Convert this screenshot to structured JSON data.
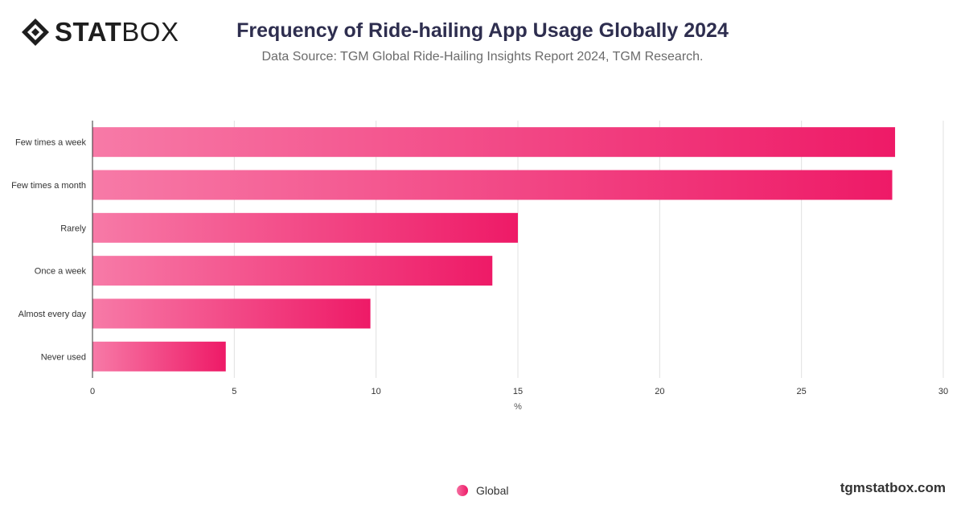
{
  "header": {
    "logo_text_bold": "STAT",
    "logo_text_light": "BOX",
    "title": "Frequency of Ride-hailing App Usage Globally 2024",
    "subtitle": "Data Source: TGM Global Ride-Hailing Insights Report 2024, TGM Research."
  },
  "chart_data": {
    "type": "bar",
    "orientation": "horizontal",
    "title": "Frequency of Ride-hailing App Usage Globally 2024",
    "subtitle": "Data Source: TGM Global Ride-Hailing Insights Report 2024, TGM Research.",
    "categories": [
      "Few times a week",
      "Few times a month",
      "Rarely",
      "Once a week",
      "Almost every day",
      "Never used"
    ],
    "series": [
      {
        "name": "Global",
        "values": [
          28.3,
          28.2,
          15.0,
          14.1,
          9.8,
          4.7
        ],
        "color": "#ee1a67"
      }
    ],
    "xlabel": "%",
    "ylabel": "",
    "xlim": [
      0,
      30
    ],
    "xticks": [
      0,
      5,
      10,
      15,
      20,
      25,
      30
    ],
    "grid": true,
    "legend_position": "bottom-center"
  },
  "legend": {
    "label": "Global"
  },
  "footer": {
    "brand": "tgmstatbox.com"
  },
  "colors": {
    "bar_start": "#f77aa7",
    "bar_end": "#ee1a67",
    "grid": "#e0e0e0",
    "axis": "#333333"
  }
}
